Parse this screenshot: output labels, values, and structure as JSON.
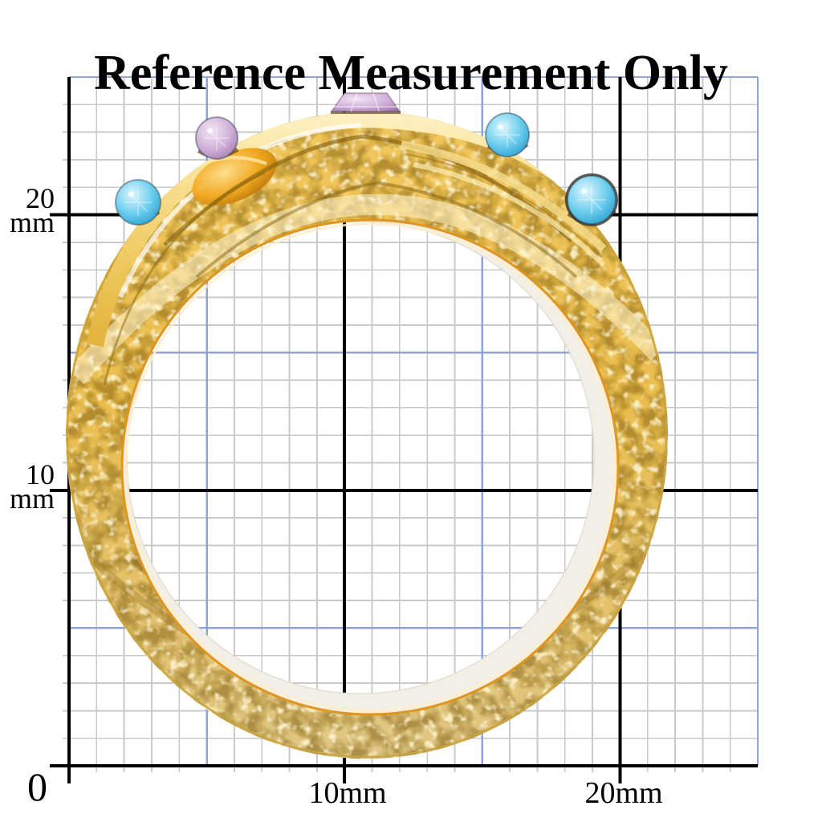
{
  "title": "Reference Measurement Only",
  "axis": {
    "unit": "mm",
    "y_labels": [
      {
        "value": "20",
        "unit": "mm"
      },
      {
        "value": "10",
        "unit": "mm"
      }
    ],
    "origin": "0",
    "x_labels": [
      "10mm",
      "20mm"
    ]
  },
  "grid": {
    "minor_step_mm": 1,
    "major_step_mm": 5,
    "bold_step_mm": 10,
    "minor_color": "#c9c9c9",
    "major_color": "#8fa3dc",
    "axis_color": "#000000"
  },
  "ring": {
    "description": "gold-ring-with-multicolor-crystals",
    "band_top_color": "#f1c65c",
    "band_mid_color": "#eabd4e",
    "band_bottom_color": "#dfc684",
    "band_highlight": "#fff6d4",
    "band_shadow": "#7c5a08",
    "inner_edge_color": "#e0951d",
    "inner_lip_color": "#ffeec9",
    "inner_wall_color": "#f2efe8",
    "outer_edge_color": "#c9a33b",
    "gems": [
      {
        "name": "top-center-gem",
        "shade": "light-rose",
        "hex": "#cfaed8"
      },
      {
        "name": "upper-left-gem",
        "shade": "light-rose",
        "hex": "#cfaed8"
      },
      {
        "name": "upper-right-gem",
        "shade": "aqua",
        "hex": "#6fcfef"
      },
      {
        "name": "far-left-gem",
        "shade": "aqua",
        "hex": "#6fcfef"
      },
      {
        "name": "far-right-gem",
        "shade": "aqua",
        "hex": "#6fcfef"
      }
    ]
  }
}
